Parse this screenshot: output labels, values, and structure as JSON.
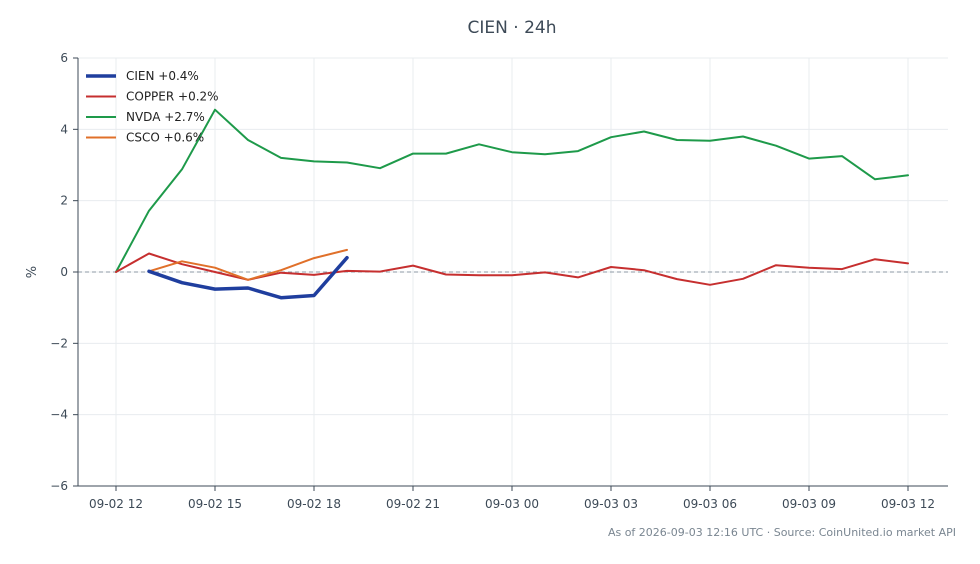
{
  "chart_data": {
    "type": "line",
    "title": "CIEN · 24h",
    "ylabel": "%",
    "xlabel": "",
    "ylim": [
      -6,
      6
    ],
    "yticks": [
      -6,
      -4,
      -2,
      0,
      2,
      4,
      6
    ],
    "ytick_labels": [
      "−6",
      "−4",
      "−2",
      "0",
      "2",
      "4",
      "6"
    ],
    "xlim": [
      12,
      36
    ],
    "xticks": [
      {
        "x": 12,
        "label": "09-02 12"
      },
      {
        "x": 15,
        "label": "09-02 15"
      },
      {
        "x": 18,
        "label": "09-02 18"
      },
      {
        "x": 21,
        "label": "09-02 21"
      },
      {
        "x": 24,
        "label": "09-03 00"
      },
      {
        "x": 27,
        "label": "09-03 03"
      },
      {
        "x": 30,
        "label": "09-03 06"
      },
      {
        "x": 33,
        "label": "09-03 09"
      },
      {
        "x": 36,
        "label": "09-03 12"
      }
    ],
    "grid": true,
    "zero_line": true,
    "legend_position": "top-left",
    "series": [
      {
        "name": "CIEN +0.4%",
        "color": "#1f3e9e",
        "width": 3.5,
        "x": [
          13,
          14,
          15,
          16,
          17,
          18,
          19
        ],
        "y": [
          0.02,
          -0.3,
          -0.48,
          -0.45,
          -0.72,
          -0.66,
          0.4
        ]
      },
      {
        "name": "COPPER +0.2%",
        "color": "#c62f2f",
        "width": 2,
        "x": [
          12,
          13,
          14,
          15,
          16,
          17,
          18,
          19,
          20,
          21,
          22,
          23,
          24,
          25,
          26,
          27,
          28,
          29,
          30,
          31,
          32,
          33,
          34,
          35,
          36
        ],
        "y": [
          0.0,
          0.52,
          0.22,
          0.0,
          -0.22,
          -0.02,
          -0.08,
          0.03,
          0.01,
          0.18,
          -0.07,
          -0.09,
          -0.09,
          -0.01,
          -0.15,
          0.14,
          0.05,
          -0.2,
          -0.36,
          -0.19,
          0.19,
          0.12,
          0.08,
          0.36,
          0.24
        ]
      },
      {
        "name": "NVDA +2.7%",
        "color": "#1e9a4a",
        "width": 2,
        "x": [
          12,
          13,
          14,
          15,
          16,
          17,
          18,
          19,
          20,
          21,
          22,
          23,
          24,
          25,
          26,
          27,
          28,
          29,
          30,
          31,
          32,
          33,
          34,
          35,
          36
        ],
        "y": [
          0.0,
          1.72,
          2.88,
          4.55,
          3.7,
          3.2,
          3.1,
          3.07,
          2.91,
          3.32,
          3.32,
          3.58,
          3.36,
          3.3,
          3.39,
          3.78,
          3.94,
          3.7,
          3.68,
          3.8,
          3.54,
          3.18,
          3.25,
          2.6,
          2.71
        ]
      },
      {
        "name": "CSCO +0.6%",
        "color": "#e0702a",
        "width": 2,
        "x": [
          13,
          14,
          15,
          16,
          17,
          18,
          19
        ],
        "y": [
          0.02,
          0.3,
          0.12,
          -0.22,
          0.05,
          0.39,
          0.62
        ]
      }
    ]
  },
  "footer": "As of 2026-09-03 12:16 UTC · Source: CoinUnited.io market API"
}
